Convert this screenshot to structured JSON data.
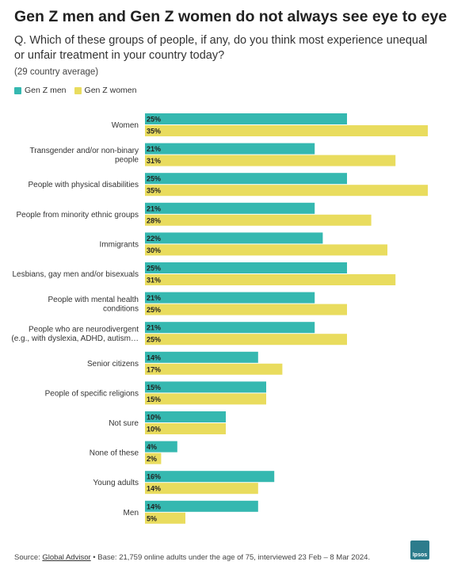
{
  "header": {
    "title": "Gen Z men and Gen Z women do not always see eye to eye",
    "subtitle": "Q. Which of these groups of people, if any, do you think most experience unequal or unfair treatment in your country today?",
    "note": "(29 country average)"
  },
  "colors": {
    "men": "#35b8b0",
    "women": "#e9dc5e"
  },
  "chart_data": {
    "type": "bar",
    "orientation": "horizontal",
    "categories": [
      [
        "Women"
      ],
      [
        "Transgender and/or non-binary",
        "people"
      ],
      [
        "People with physical disabilities"
      ],
      [
        "People from minority ethnic groups"
      ],
      [
        "Immigrants"
      ],
      [
        "Lesbians, gay men and/or bisexuals"
      ],
      [
        "People with mental health",
        "conditions"
      ],
      [
        "People who are neurodivergent",
        "(e.g., with dyslexia, ADHD, autism…"
      ],
      [
        "Senior citizens"
      ],
      [
        "People of specific religions"
      ],
      [
        "Not sure"
      ],
      [
        "None of these"
      ],
      [
        "Young adults"
      ],
      [
        "Men"
      ]
    ],
    "series": [
      {
        "name": "Gen Z men",
        "values": [
          25,
          21,
          25,
          21,
          22,
          25,
          21,
          21,
          14,
          15,
          10,
          4,
          16,
          14
        ]
      },
      {
        "name": "Gen Z women",
        "values": [
          35,
          31,
          35,
          28,
          30,
          31,
          25,
          25,
          17,
          15,
          10,
          2,
          14,
          5
        ]
      }
    ],
    "value_suffix": "%",
    "xlim": [
      0,
      35
    ],
    "legend": "top-left",
    "grid": false
  },
  "footer": {
    "source_prefix": "Source: ",
    "source_link": "Global Advisor",
    "source_rest": " • Base: 21,759 online adults under the age of 75, interviewed 23 Feb – 8 Mar 2024."
  },
  "logo": {
    "text": "Ipsos"
  }
}
